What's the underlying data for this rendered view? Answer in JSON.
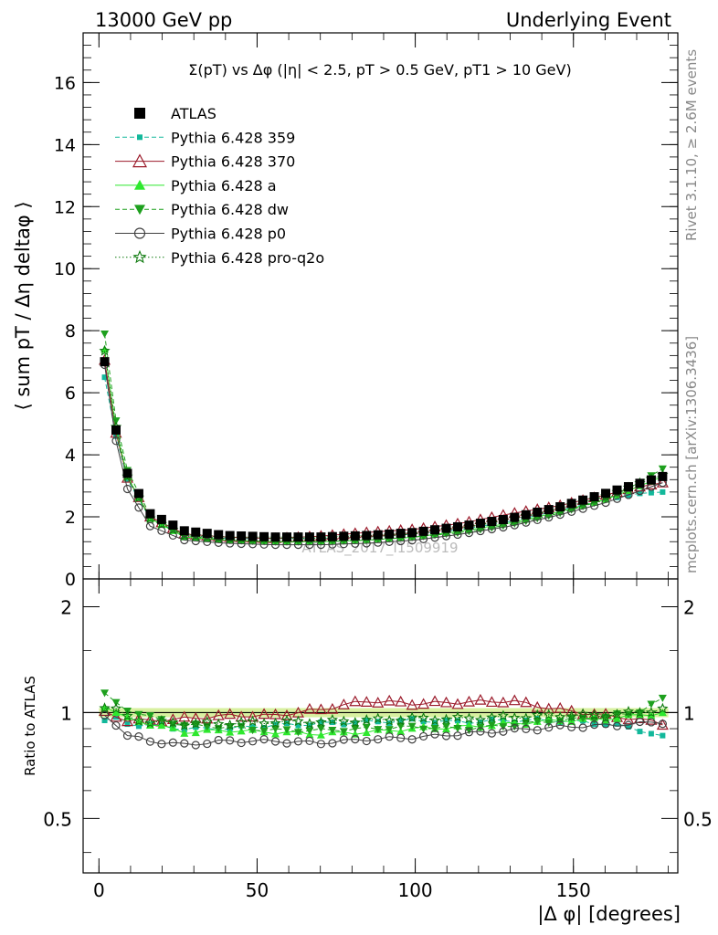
{
  "header": {
    "left": "13000 GeV pp",
    "right": "Underlying Event"
  },
  "side_labels": {
    "rivet": "Rivet 3.1.10, ≥ 2.6M events",
    "mcplots": "mcplots.cern.ch [arXiv:1306.3436]"
  },
  "watermark": "ATLAS_2017_I1509919",
  "legend_position": "top-left",
  "chart_data": [
    {
      "type": "scatter",
      "title": "Σ(pT) vs Δφ (|η| < 2.5, pT > 0.5 GeV, pT1 > 10 GeV)",
      "ylabel": "⟨ sum pT / Δη deltaφ ⟩",
      "xlabel": "",
      "xlim": [
        -5,
        183
      ],
      "ylim": [
        0,
        17.6
      ],
      "x_ticks": [
        0,
        50,
        100,
        150
      ],
      "y_ticks": [
        0,
        2,
        4,
        6,
        8,
        10,
        12,
        14,
        16
      ],
      "y_tick_labels": [
        "0",
        "2",
        "4",
        "6",
        "8",
        "10",
        "12",
        "14",
        "16"
      ],
      "series": [
        {
          "name": "ATLAS",
          "color": "#000000",
          "marker": "square",
          "line": "none",
          "x": [
            1.8,
            5.4,
            9,
            16.2,
            27,
            40,
            55,
            70,
            85,
            100,
            115,
            130,
            145,
            160,
            170,
            178.2
          ],
          "y": [
            7.0,
            4.8,
            3.4,
            2.1,
            1.55,
            1.4,
            1.35,
            1.35,
            1.4,
            1.5,
            1.7,
            1.95,
            2.3,
            2.75,
            3.05,
            3.3
          ]
        },
        {
          "name": "Pythia 6.428 359",
          "color": "#13b89b",
          "marker": "square-small",
          "line": "dashed",
          "x": [
            1.8,
            5.4,
            9,
            16.2,
            27,
            40,
            55,
            70,
            85,
            100,
            115,
            130,
            145,
            160,
            170,
            178.2
          ],
          "y": [
            6.5,
            4.6,
            3.2,
            1.95,
            1.4,
            1.3,
            1.3,
            1.3,
            1.35,
            1.45,
            1.6,
            1.85,
            2.2,
            2.55,
            2.75,
            2.8
          ]
        },
        {
          "name": "Pythia 6.428 370",
          "color": "#9b1a2a",
          "marker": "triangle-open",
          "line": "solid",
          "x": [
            1.8,
            5.4,
            9,
            16.2,
            27,
            40,
            55,
            70,
            85,
            100,
            115,
            130,
            145,
            160,
            170,
            178.2
          ],
          "y": [
            7.05,
            4.7,
            3.25,
            2.0,
            1.45,
            1.35,
            1.3,
            1.38,
            1.5,
            1.6,
            1.8,
            2.1,
            2.35,
            2.7,
            2.95,
            3.1
          ]
        },
        {
          "name": "Pythia 6.428 a",
          "color": "#2ee82e",
          "marker": "triangle",
          "line": "solid",
          "x": [
            1.8,
            5.4,
            9,
            16.2,
            27,
            40,
            55,
            70,
            85,
            100,
            115,
            130,
            145,
            160,
            170,
            178.2
          ],
          "y": [
            7.4,
            4.8,
            3.3,
            1.95,
            1.35,
            1.25,
            1.2,
            1.2,
            1.25,
            1.35,
            1.55,
            1.8,
            2.15,
            2.55,
            2.95,
            3.3
          ]
        },
        {
          "name": "Pythia 6.428 dw",
          "color": "#1ea01e",
          "marker": "triangle-down",
          "line": "dashed",
          "x": [
            1.8,
            5.4,
            9,
            16.2,
            27,
            40,
            55,
            70,
            85,
            100,
            115,
            130,
            145,
            160,
            170,
            178.2
          ],
          "y": [
            7.9,
            5.1,
            3.5,
            2.05,
            1.4,
            1.25,
            1.2,
            1.2,
            1.25,
            1.35,
            1.5,
            1.75,
            2.1,
            2.55,
            3.05,
            3.55
          ]
        },
        {
          "name": "Pythia 6.428 p0",
          "color": "#404040",
          "marker": "circle-open",
          "line": "solid",
          "x": [
            1.8,
            5.4,
            9,
            16.2,
            27,
            40,
            55,
            70,
            85,
            100,
            115,
            130,
            145,
            160,
            170,
            178.2
          ],
          "y": [
            6.9,
            4.45,
            2.9,
            1.7,
            1.25,
            1.15,
            1.1,
            1.1,
            1.15,
            1.25,
            1.45,
            1.7,
            2.05,
            2.45,
            2.8,
            3.1
          ]
        },
        {
          "name": "Pythia 6.428 pro-q2o",
          "color": "#0e7a0e",
          "marker": "star-open",
          "line": "dotted",
          "x": [
            1.8,
            5.4,
            9,
            16.2,
            27,
            40,
            55,
            70,
            85,
            100,
            115,
            130,
            145,
            160,
            170,
            178.2
          ],
          "y": [
            7.35,
            4.9,
            3.3,
            1.95,
            1.4,
            1.3,
            1.3,
            1.3,
            1.35,
            1.45,
            1.65,
            1.9,
            2.25,
            2.65,
            3.05,
            3.35
          ]
        }
      ]
    },
    {
      "type": "scatter",
      "title": "",
      "ylabel": "Ratio to ATLAS",
      "xlabel": "|Δ φ| [degrees]",
      "xlim": [
        -5,
        183
      ],
      "ylim": [
        0.35,
        2.4
      ],
      "y_scale": "log",
      "x_ticks": [
        0,
        50,
        100,
        150
      ],
      "x_tick_labels": [
        "0",
        "50",
        "100",
        "150"
      ],
      "y_ticks": [
        0.5,
        1,
        2
      ],
      "y_tick_labels": [
        "0.5",
        "1",
        "2"
      ],
      "band": {
        "low": 0.97,
        "high": 1.03,
        "color": "#d8f0a0"
      },
      "series": [
        {
          "name": "Pythia 6.428 359",
          "color": "#13b89b",
          "marker": "square-small",
          "x": [
            1.8,
            5.4,
            9,
            16.2,
            27,
            40,
            55,
            70,
            85,
            100,
            115,
            130,
            145,
            160,
            170,
            178.2
          ],
          "y": [
            0.95,
            0.96,
            0.93,
            0.92,
            0.9,
            0.9,
            0.92,
            0.93,
            0.94,
            0.95,
            0.94,
            0.95,
            0.95,
            0.93,
            0.9,
            0.85
          ]
        },
        {
          "name": "Pythia 6.428 370",
          "color": "#9b1a2a",
          "marker": "triangle-open",
          "x": [
            1.8,
            5.4,
            9,
            16.2,
            27,
            40,
            55,
            70,
            85,
            100,
            115,
            130,
            145,
            160,
            170,
            178.2
          ],
          "y": [
            1.0,
            0.98,
            0.95,
            0.95,
            0.96,
            0.98,
            0.98,
            1.02,
            1.08,
            1.06,
            1.07,
            1.08,
            1.02,
            0.98,
            0.96,
            0.93
          ]
        },
        {
          "name": "Pythia 6.428 a",
          "color": "#2ee82e",
          "marker": "triangle",
          "x": [
            1.8,
            5.4,
            9,
            16.2,
            27,
            40,
            55,
            70,
            85,
            100,
            115,
            130,
            145,
            160,
            170,
            178.2
          ],
          "y": [
            1.05,
            1.0,
            0.96,
            0.93,
            0.88,
            0.89,
            0.88,
            0.87,
            0.88,
            0.9,
            0.91,
            0.93,
            0.95,
            0.96,
            0.98,
            1.0
          ]
        },
        {
          "name": "Pythia 6.428 dw",
          "color": "#1ea01e",
          "marker": "triangle-down",
          "x": [
            1.8,
            5.4,
            9,
            16.2,
            27,
            40,
            55,
            70,
            85,
            100,
            115,
            130,
            145,
            160,
            170,
            178.2
          ],
          "y": [
            1.13,
            1.06,
            1.02,
            0.97,
            0.92,
            0.91,
            0.89,
            0.89,
            0.9,
            0.91,
            0.9,
            0.92,
            0.95,
            0.97,
            1.0,
            1.09
          ]
        },
        {
          "name": "Pythia 6.428 p0",
          "color": "#404040",
          "marker": "circle-open",
          "x": [
            1.8,
            5.4,
            9,
            16.2,
            27,
            40,
            55,
            70,
            85,
            100,
            115,
            130,
            145,
            160,
            170,
            178.2
          ],
          "y": [
            0.98,
            0.93,
            0.86,
            0.83,
            0.81,
            0.83,
            0.83,
            0.82,
            0.84,
            0.85,
            0.87,
            0.89,
            0.91,
            0.92,
            0.93,
            0.94
          ]
        },
        {
          "name": "Pythia 6.428 pro-q2o",
          "color": "#0e7a0e",
          "marker": "star-open",
          "x": [
            1.8,
            5.4,
            9,
            16.2,
            27,
            40,
            55,
            70,
            85,
            100,
            115,
            130,
            145,
            160,
            170,
            178.2
          ],
          "y": [
            1.04,
            1.02,
            0.97,
            0.94,
            0.93,
            0.93,
            0.94,
            0.94,
            0.95,
            0.96,
            0.96,
            0.97,
            0.98,
            0.98,
            1.0,
            1.02
          ]
        }
      ]
    }
  ]
}
